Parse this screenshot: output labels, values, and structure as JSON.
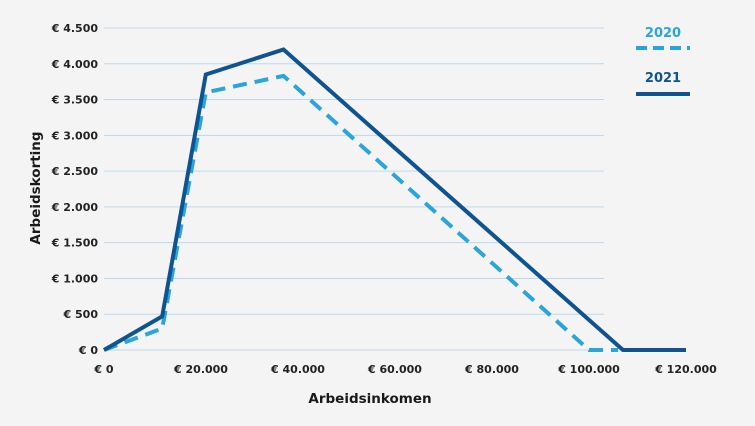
{
  "colors": {
    "background": "#f4f4f4",
    "grid": "#bcd9ec",
    "series_2020": "#2aa4dc",
    "series_2021": "#0f5490"
  },
  "chart_data": {
    "type": "line",
    "xlabel": "Arbeidsinkomen",
    "ylabel": "Arbeidskorting",
    "xlim": [
      0,
      120000
    ],
    "ylim": [
      0,
      4500
    ],
    "grid": true,
    "legend_position": "top-right",
    "x_ticks": [
      {
        "value": 0,
        "label": "€ 0"
      },
      {
        "value": 20000,
        "label": "€ 20.000"
      },
      {
        "value": 40000,
        "label": "€ 40.000"
      },
      {
        "value": 60000,
        "label": "€ 60.000"
      },
      {
        "value": 80000,
        "label": "€ 80.000"
      },
      {
        "value": 100000,
        "label": "€ 100.000"
      },
      {
        "value": 120000,
        "label": "€ 120.000"
      }
    ],
    "y_ticks": [
      {
        "value": 0,
        "label": "€ 0"
      },
      {
        "value": 500,
        "label": "€ 500"
      },
      {
        "value": 1000,
        "label": "€ 1.000"
      },
      {
        "value": 1500,
        "label": "€ 1.500"
      },
      {
        "value": 2000,
        "label": "€ 2.000"
      },
      {
        "value": 2500,
        "label": "€ 2.500"
      },
      {
        "value": 3000,
        "label": "€ 3.000"
      },
      {
        "value": 3500,
        "label": "€ 3.500"
      },
      {
        "value": 4000,
        "label": "€ 4.000"
      },
      {
        "value": 4500,
        "label": "€ 4.500"
      }
    ],
    "series": [
      {
        "name": "2020",
        "style": "dashed",
        "color": "#2aa4dc",
        "x": [
          0,
          12000,
          21000,
          37000,
          100000,
          106000
        ],
        "y": [
          0,
          300,
          3600,
          3830,
          0,
          0
        ]
      },
      {
        "name": "2021",
        "style": "solid",
        "color": "#0f5490",
        "x": [
          0,
          12000,
          21000,
          37000,
          107000,
          120000
        ],
        "y": [
          0,
          470,
          3850,
          4200,
          0,
          0
        ]
      }
    ]
  }
}
